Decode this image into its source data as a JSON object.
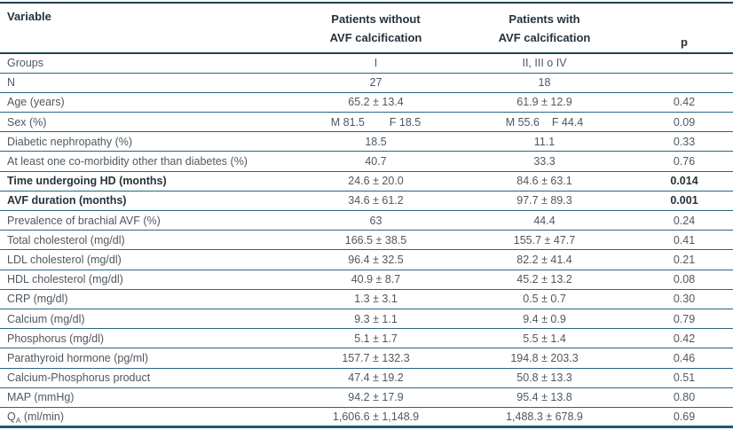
{
  "table": {
    "headers": {
      "variable": "Variable",
      "without_line1": "Patients without",
      "without_line2": "AVF calcification",
      "with_line1": "Patients with",
      "with_line2": "AVF calcification",
      "p": "p"
    },
    "rows": [
      {
        "label": "Groups",
        "without": "I",
        "with": "II, III o IV",
        "p": ""
      },
      {
        "label": "N",
        "without": "27",
        "with": "18",
        "p": ""
      },
      {
        "label": "Age (years)",
        "without": "65.2 ± 13.4",
        "with": "61.9 ± 12.9",
        "p": "0.42"
      },
      {
        "label": "Sex (%)",
        "without": "M 81.5        F 18.5",
        "with": "M 55.6    F 44.4",
        "p": "0.09"
      },
      {
        "label": "Diabetic nephropathy (%)",
        "without": "18.5",
        "with": "11.1",
        "p": "0.33"
      },
      {
        "label": "At least one co-morbidity other than diabetes (%)",
        "without": "40.7",
        "with": "33.3",
        "p": "0.76"
      },
      {
        "label": "Time undergoing HD (months)",
        "without": "24.6 ± 20.0",
        "with": "84.6 ± 63.1",
        "p": "0.014",
        "bold": true
      },
      {
        "label": "AVF duration (months)",
        "without": "34.6 ± 61.2",
        "with": "97.7 ± 89.3",
        "p": "0.001",
        "bold": true
      },
      {
        "label": "Prevalence of brachial AVF (%)",
        "without": "63",
        "with": "44.4",
        "p": "0.24"
      },
      {
        "label": "Total cholesterol (mg/dl)",
        "without": "166.5 ± 38.5",
        "with": "155.7 ± 47.7",
        "p": "0.41"
      },
      {
        "label": "LDL cholesterol (mg/dl)",
        "without": "96.4 ± 32.5",
        "with": "82.2 ± 41.4",
        "p": "0.21"
      },
      {
        "label": "HDL cholesterol (mg/dl)",
        "without": "40.9 ± 8.7",
        "with": "45.2 ± 13.2",
        "p": "0.08"
      },
      {
        "label": "CRP (mg/dl)",
        "without": "1.3 ± 3.1",
        "with": "0.5 ± 0.7",
        "p": "0.30"
      },
      {
        "label": "Calcium (mg/dl)",
        "without": "9.3 ± 1.1",
        "with": "9.4 ± 0.9",
        "p": "0.79"
      },
      {
        "label": "Phosphorus (mg/dl)",
        "without": "5.1 ± 1.7",
        "with": "5.5 ± 1.4",
        "p": "0.42"
      },
      {
        "label": "Parathyroid hormone (pg/ml)",
        "without": "157.7 ± 132.3",
        "with": "194.8 ± 203.3",
        "p": "0.46"
      },
      {
        "label": "Calcium-Phosphorus product",
        "without": "47.4 ± 19.2",
        "with": "50.8 ± 13.3",
        "p": "0.51"
      },
      {
        "label": "MAP (mmHg)",
        "without": "94.2 ± 17.9",
        "with": "95.4 ± 13.8",
        "p": "0.80"
      },
      {
        "label": "Q",
        "label_sub": "A",
        "label_rest": " (ml/min)",
        "without": "1,606.6 ± 1,148.9",
        "with": "1,488.3 ± 678.9",
        "p": "0.69"
      }
    ],
    "colors": {
      "rule_thick": "#1f4254",
      "rule_thin": "#2a6484",
      "rule_bottom": "#1e5a72",
      "text_normal": "#4f585f",
      "text_bold": "#26323c"
    }
  }
}
